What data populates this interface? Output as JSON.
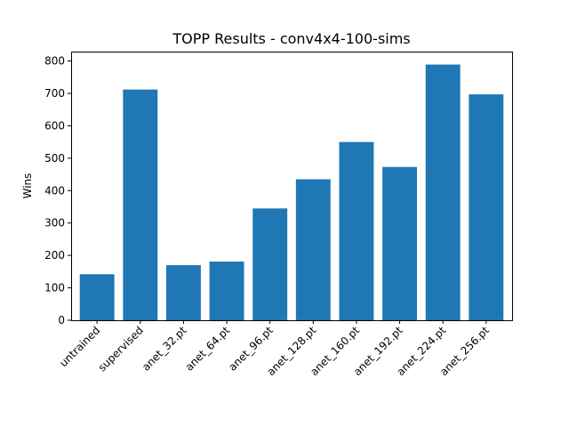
{
  "chart_data": {
    "type": "bar",
    "title": "TOPP Results - conv4x4-100-sims",
    "xlabel": "",
    "ylabel": "Wins",
    "categories": [
      "untrained",
      "supervised",
      "anet_32.pt",
      "anet_64.pt",
      "anet_96.pt",
      "anet_128.pt",
      "anet_160.pt",
      "anet_192.pt",
      "anet_224.pt",
      "anet_256.pt"
    ],
    "values": [
      142,
      712,
      170,
      181,
      345,
      435,
      550,
      473,
      789,
      697
    ],
    "ylim": [
      0,
      829
    ],
    "yticks": [
      0,
      100,
      200,
      300,
      400,
      500,
      600,
      700,
      800
    ],
    "grid": false,
    "bar_color": "#1f77b4"
  }
}
